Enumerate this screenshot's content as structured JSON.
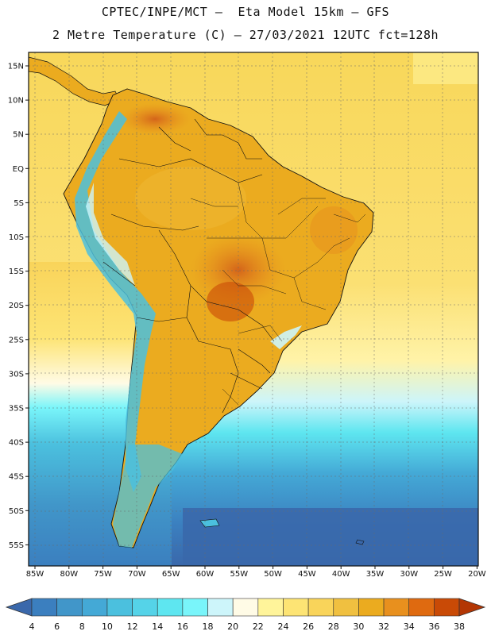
{
  "header": {
    "title_line1": "CPTEC/INPE/MCT –  Eta Model 15km – GFS",
    "title_line2": "2 Metre Temperature (C) – 27/03/2021 12UTC fct=128h"
  },
  "map": {
    "lat_labels": [
      "15N",
      "10N",
      "5N",
      "EQ",
      "5S",
      "10S",
      "15S",
      "20S",
      "25S",
      "30S",
      "35S",
      "40S",
      "45S",
      "50S",
      "55S"
    ],
    "lon_labels": [
      "85W",
      "80W",
      "75W",
      "70W",
      "65W",
      "60W",
      "55W",
      "50W",
      "45W",
      "40W",
      "35W",
      "30W",
      "25W",
      "20W"
    ]
  },
  "colorbar": {
    "labels": [
      "4",
      "6",
      "8",
      "10",
      "12",
      "14",
      "16",
      "18",
      "20",
      "22",
      "24",
      "26",
      "28",
      "30",
      "32",
      "34",
      "36",
      "38"
    ],
    "colors": [
      "#3a68ab",
      "#3b7fbf",
      "#4196c9",
      "#44a9d6",
      "#4bc0de",
      "#55d3e8",
      "#5ee6f0",
      "#79f5fa",
      "#cdf5fa",
      "#fffbe6",
      "#fff49a",
      "#fde474",
      "#f9d45a",
      "#f0c040",
      "#ebab1f",
      "#e8901e",
      "#df6a10",
      "#c94a06",
      "#b33604"
    ]
  },
  "legend_colors": {
    "ocean_warm": "#f8d458",
    "ocean_cool": "#fde47a",
    "land": "#ebab1f",
    "land_hot": "#d46f1a",
    "andes": "#4bc0de",
    "south_ocean": "#3a68ab"
  }
}
